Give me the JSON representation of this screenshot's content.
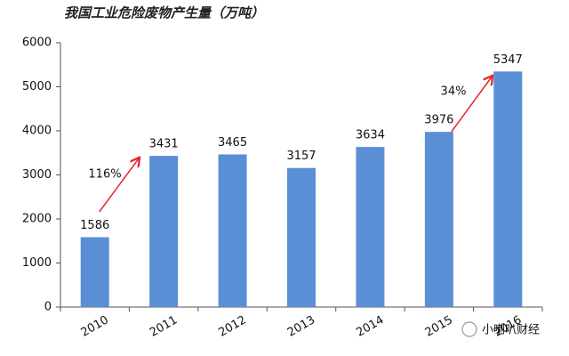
{
  "chart_data": {
    "type": "bar",
    "title": "我国工业危险废物产生量（万吨）",
    "categories": [
      "2010",
      "2011",
      "2012",
      "2013",
      "2014",
      "2015",
      "2016"
    ],
    "values": [
      1586,
      3431,
      3465,
      3157,
      3634,
      3976,
      5347
    ],
    "color": "#5a8fd6",
    "ylim": [
      0,
      6000
    ],
    "yticks": [
      0,
      1000,
      2000,
      3000,
      4000,
      5000,
      6000
    ],
    "grid": false,
    "annotations": [
      {
        "text": "116%",
        "color": "#e8252b"
      },
      {
        "text": "34%",
        "color": "#e8252b"
      }
    ],
    "watermark": "小喇叭财经"
  }
}
